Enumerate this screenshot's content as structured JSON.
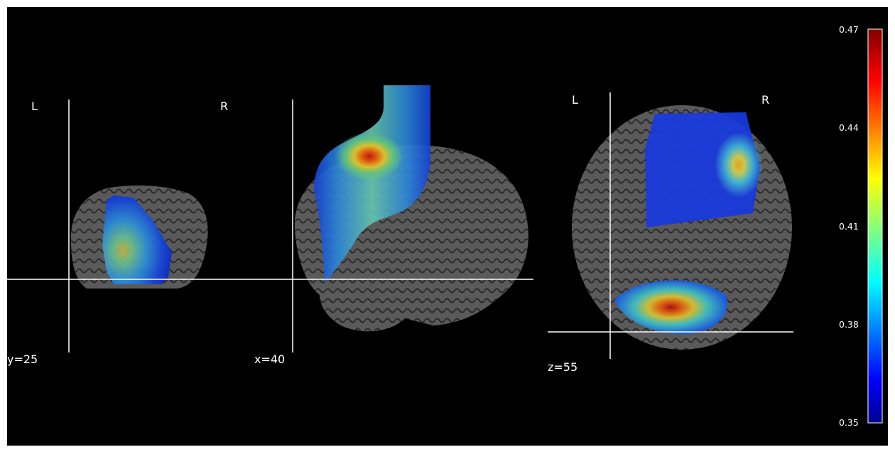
{
  "views": {
    "coronal": {
      "coord_label": "y=25",
      "left_label": "L",
      "right_label": "R"
    },
    "sagittal": {
      "coord_label": "x=40"
    },
    "axial": {
      "coord_label": "z=55",
      "left_label": "L",
      "right_label": "R"
    }
  },
  "colorbar": {
    "colormap": "jet",
    "min": 0.35,
    "max": 0.47,
    "ticks": [
      "0.47",
      "0.44",
      "0.41",
      "0.38",
      "0.35"
    ]
  },
  "colors": {
    "background": "#000000",
    "crosshair": "#ffffff",
    "brain": "#5f5f5f"
  }
}
